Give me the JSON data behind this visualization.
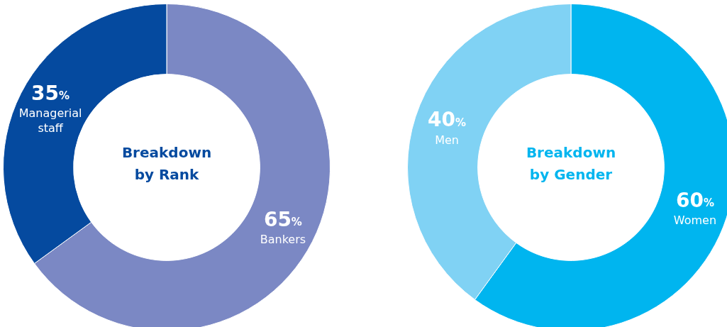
{
  "chart_data": [
    {
      "type": "donut",
      "title": "Breakdown by Rank",
      "categories": [
        "Bankers",
        "Managerial staff"
      ],
      "values": [
        65,
        35
      ],
      "colors": [
        "#7b88c4",
        "#054a9f"
      ],
      "value_labels": [
        "65%",
        "35%"
      ]
    },
    {
      "type": "donut",
      "title": "Breakdown by Gender",
      "categories": [
        "Women",
        "Men"
      ],
      "values": [
        60,
        40
      ],
      "colors": [
        "#00b5ef",
        "#80d2f4"
      ],
      "value_labels": [
        "60%",
        "40%"
      ]
    }
  ]
}
